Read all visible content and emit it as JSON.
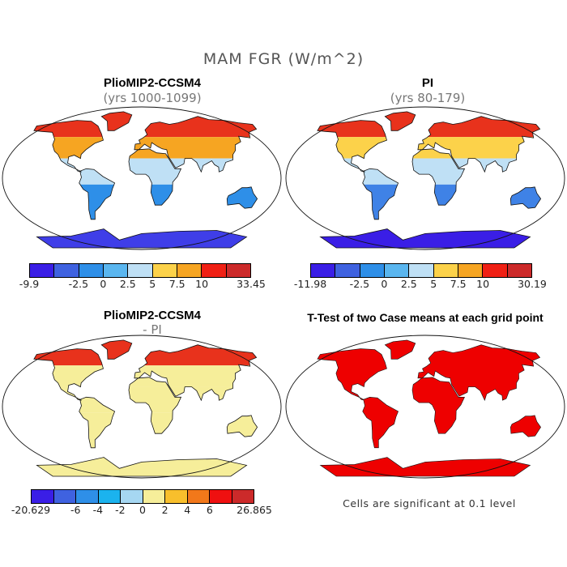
{
  "figure": {
    "title": "MAM FGR (W/m^2)"
  },
  "panels": [
    {
      "id": "plio",
      "title": "PlioMIP2-CCSM4",
      "subtitle": "(yrs 1000-1099)"
    },
    {
      "id": "pi",
      "title": "PI",
      "subtitle": "(yrs 80-179)"
    },
    {
      "id": "diff",
      "title": "PlioMIP2-CCSM4",
      "subtitle": "- PI"
    },
    {
      "id": "ttest",
      "title": "T-Test of two Case means at each grid point",
      "subtitle": ""
    }
  ],
  "colorbars": [
    {
      "id": "plio",
      "colors": [
        "#3a1ee6",
        "#3f62e0",
        "#2e8fe8",
        "#5ab6ef",
        "#bfe0f5",
        "#fcd24a",
        "#f6a522",
        "#f02014",
        "#cc2a2a"
      ],
      "ticks": [
        "-9.9",
        "-2.5",
        "0",
        "2.5",
        "5",
        "7.5",
        "10",
        "33.45"
      ]
    },
    {
      "id": "pi",
      "colors": [
        "#3a1ee6",
        "#3f62e0",
        "#2e8fe8",
        "#5ab6ef",
        "#bfe0f5",
        "#fcd24a",
        "#f6a522",
        "#f02014",
        "#cc2a2a"
      ],
      "ticks": [
        "-11.98",
        "-2.5",
        "0",
        "2.5",
        "5",
        "7.5",
        "10",
        "30.19"
      ]
    },
    {
      "id": "diff",
      "colors": [
        "#3a1ee6",
        "#3f62e0",
        "#2e8fe8",
        "#1bb3ee",
        "#a6d7f2",
        "#f6ee9a",
        "#f8bf2c",
        "#f2781a",
        "#ef1010",
        "#cc2a2a"
      ],
      "ticks": [
        "-20.629",
        "-6",
        "-4",
        "-2",
        "0",
        "2",
        "4",
        "6",
        "26.865"
      ]
    }
  ],
  "ttest": {
    "note": "Cells are significant at 0.1 level",
    "significant_color": "#ee0000"
  },
  "land_fill": {
    "plio": {
      "arctic": "#e8321c",
      "midlat": "#f6a522",
      "tropics": "#bfe0f5",
      "south": "#2e8fe8",
      "antarctica": "#3f3ee8"
    },
    "pi": {
      "arctic": "#e8321c",
      "midlat": "#fcd24a",
      "tropics": "#bfe0f5",
      "south": "#3f82e6",
      "antarctica": "#3a1ee6"
    },
    "diff": {
      "arctic": "#e8321c",
      "midlat": "#f6ee9a",
      "tropics": "#f6ee9a",
      "south": "#f6ee9a",
      "antarctica": "#f6ee9a"
    }
  }
}
